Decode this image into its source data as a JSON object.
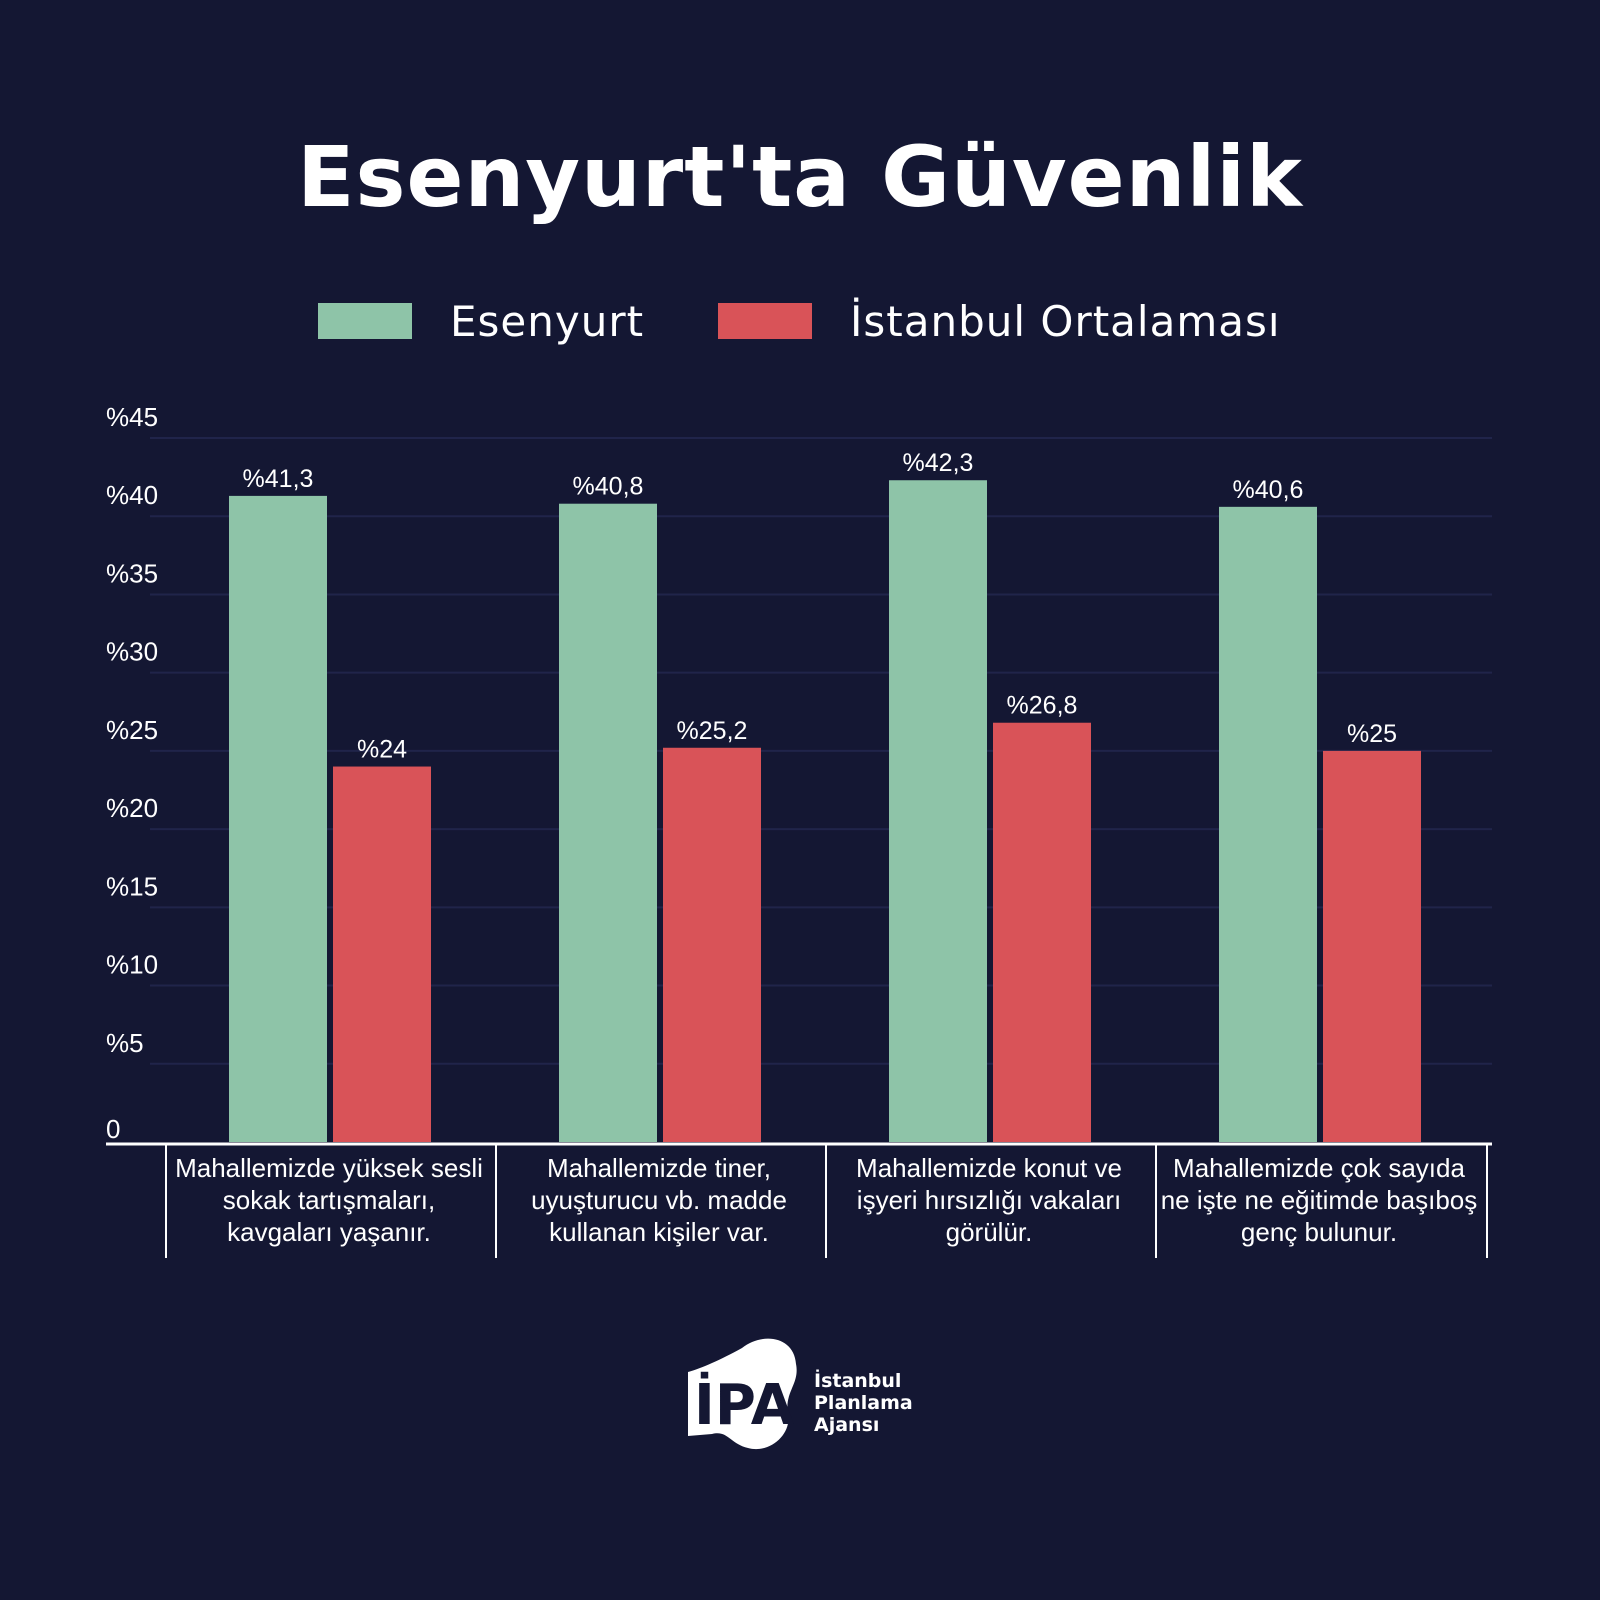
{
  "title": "Esenyurt'ta Güvenlik",
  "colors": {
    "background": "#141733",
    "esenyurt": "#8ec4a8",
    "istanbul": "#d95358",
    "grid": "#20244a"
  },
  "chart_data": {
    "type": "bar",
    "categories": [
      "Mahallemizde yüksek sesli sokak tartışmaları, kavgaları yaşanır.",
      "Mahallemizde tiner, uyuşturucu vb. madde kullanan kişiler var.",
      "Mahallemizde konut ve işyeri hırsızlığı vakaları görülür.",
      "Mahallemizde çok sayıda ne işte ne eğitimde başıboş genç bulunur."
    ],
    "series": [
      {
        "name": "Esenyurt",
        "values": [
          41.3,
          40.8,
          42.3,
          40.6
        ],
        "labels": [
          "%41,3",
          "%40,8",
          "%42,3",
          "%40,6"
        ]
      },
      {
        "name": "İstanbul Ortalaması",
        "values": [
          24,
          25.2,
          26.8,
          25
        ],
        "labels": [
          "%24",
          "%25,2",
          "%26,8",
          "%25"
        ]
      }
    ],
    "ylim": [
      0,
      45
    ],
    "yticks": [
      0,
      5,
      10,
      15,
      20,
      25,
      30,
      35,
      40,
      45
    ],
    "ytick_labels": [
      "0",
      "%5",
      "%10",
      "%15",
      "%20",
      "%25",
      "%30",
      "%35",
      "%40",
      "%45"
    ],
    "grid": true,
    "legend_position": "top-center"
  },
  "logo": {
    "mark": "İPA",
    "lines": [
      "İstanbul",
      "Planlama",
      "Ajansı"
    ]
  }
}
